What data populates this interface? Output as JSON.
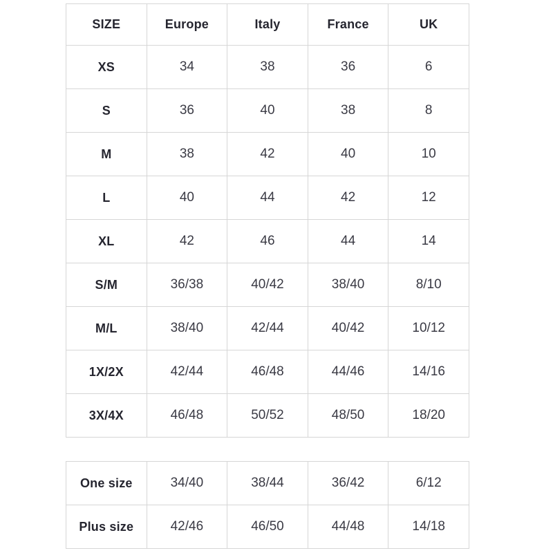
{
  "colors": {
    "background": "#ffffff",
    "border": "#d6d6d6",
    "header_text": "#25252f",
    "value_text": "#3a3a44"
  },
  "chart_data": [
    {
      "type": "table",
      "title": "",
      "columns": [
        "SIZE",
        "Europe",
        "Italy",
        "France",
        "UK"
      ],
      "rows": [
        [
          "XS",
          "34",
          "38",
          "36",
          "6"
        ],
        [
          "S",
          "36",
          "40",
          "38",
          "8"
        ],
        [
          "M",
          "38",
          "42",
          "40",
          "10"
        ],
        [
          "L",
          "40",
          "44",
          "42",
          "12"
        ],
        [
          "XL",
          "42",
          "46",
          "44",
          "14"
        ],
        [
          "S/M",
          "36/38",
          "40/42",
          "38/40",
          "8/10"
        ],
        [
          "M/L",
          "38/40",
          "42/44",
          "40/42",
          "10/12"
        ],
        [
          "1X/2X",
          "42/44",
          "46/48",
          "44/46",
          "14/16"
        ],
        [
          "3X/4X",
          "46/48",
          "50/52",
          "48/50",
          "18/20"
        ]
      ],
      "layout": {
        "grid": true,
        "header_row": true,
        "text_align": "center"
      }
    },
    {
      "type": "table",
      "title": "",
      "columns": [],
      "rows": [
        [
          "One size",
          "34/40",
          "38/44",
          "36/42",
          "6/12"
        ],
        [
          "Plus size",
          "42/46",
          "46/50",
          "44/48",
          "14/18"
        ]
      ],
      "layout": {
        "grid": true,
        "header_row": false,
        "text_align": "center"
      }
    }
  ]
}
